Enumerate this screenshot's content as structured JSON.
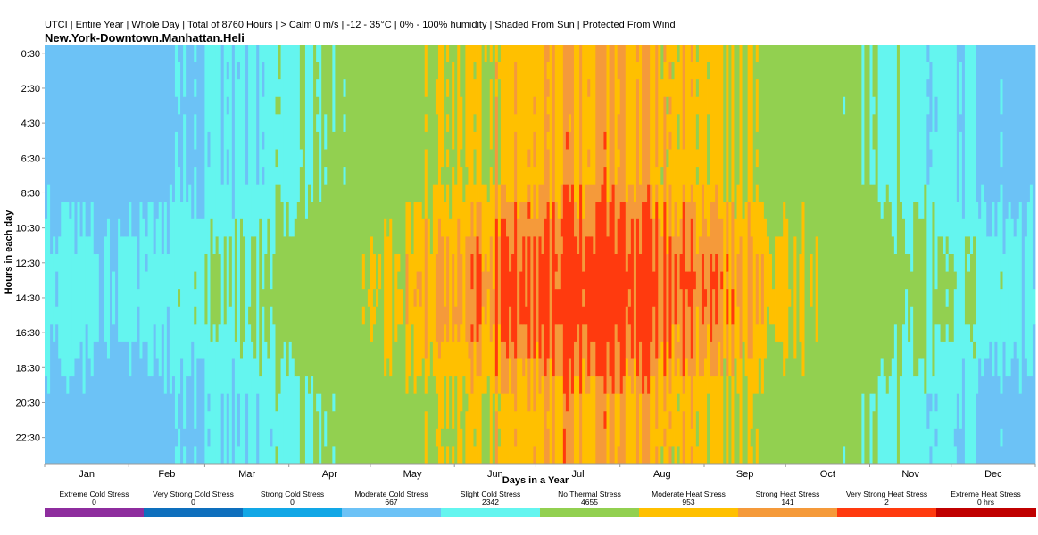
{
  "header": {
    "subtitle": "UTCI | Entire Year | Whole Day | Total of 8760 Hours | > Calm 0 m/s | -12 - 35°C | 0% - 100% humidity | Shaded From Sun | Protected From Wind",
    "title": "New.York-Downtown.Manhattan.Heli"
  },
  "chart_data": {
    "type": "heatmap",
    "title": "New.York-Downtown.Manhattan.Heli",
    "subtitle": "UTCI | Entire Year | Whole Day | Total of 8760 Hours | > Calm 0 m/s | -12 - 35°C | 0% - 100% humidity | Shaded From Sun | Protected From Wind",
    "xlabel": "Days in a Year",
    "ylabel": "Hours in each day",
    "xlim": [
      1,
      365
    ],
    "ylim": [
      0,
      24
    ],
    "y_ticks": [
      "0:30",
      "2:30",
      "4:30",
      "6:30",
      "8:30",
      "10:30",
      "12:30",
      "14:30",
      "16:30",
      "18:30",
      "20:30",
      "22:30"
    ],
    "months": [
      "Jan",
      "Feb",
      "Mar",
      "Apr",
      "May",
      "Jun",
      "Jul",
      "Aug",
      "Sep",
      "Oct",
      "Nov",
      "Dec"
    ],
    "month_days": [
      31,
      28,
      31,
      30,
      31,
      30,
      31,
      31,
      30,
      31,
      30,
      31
    ],
    "categories": [
      {
        "name": "Extreme Cold Stress",
        "count": "0",
        "color": "#8e2d9e"
      },
      {
        "name": "Very Strong Cold Stress",
        "count": "0",
        "color": "#0e6fbd"
      },
      {
        "name": "Strong Cold Stress",
        "count": "0",
        "color": "#12a7e6"
      },
      {
        "name": "Moderate Cold Stress",
        "count": "667",
        "color": "#6cc2f6"
      },
      {
        "name": "Slight Cold Stress",
        "count": "2342",
        "color": "#64f5ef"
      },
      {
        "name": "No Thermal Stress",
        "count": "4655",
        "color": "#92d050"
      },
      {
        "name": "Moderate Heat Stress",
        "count": "953",
        "color": "#ffc000"
      },
      {
        "name": "Strong Heat Stress",
        "count": "141",
        "color": "#f59a3a"
      },
      {
        "name": "Very Strong Heat Stress",
        "count": "2",
        "color": "#ff3a0e"
      },
      {
        "name": "Extreme Heat Stress",
        "count": "0 hrs",
        "color": "#c00000"
      }
    ]
  }
}
